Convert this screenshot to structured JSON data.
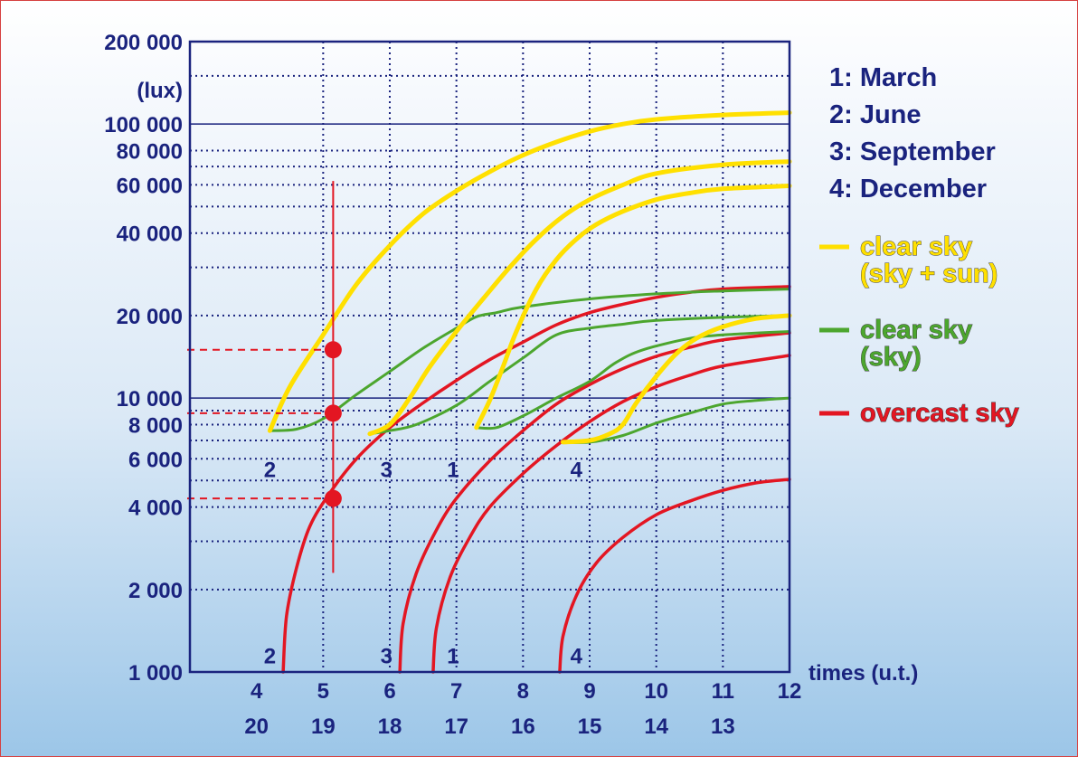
{
  "chart_data": {
    "type": "line",
    "y_scale": "log",
    "ylim": [
      1000,
      200000
    ],
    "xlim": [
      3,
      12
    ],
    "y_unit_label": "(lux)",
    "xlabel": "times (u.t.)",
    "y_tick_labels": [
      {
        "value": 200000,
        "label": "200 000"
      },
      {
        "value": 100000,
        "label": "100 000"
      },
      {
        "value": 80000,
        "label": "80 000"
      },
      {
        "value": 60000,
        "label": "60 000"
      },
      {
        "value": 40000,
        "label": "40 000"
      },
      {
        "value": 20000,
        "label": "20 000"
      },
      {
        "value": 10000,
        "label": "10 000"
      },
      {
        "value": 8000,
        "label": "8 000"
      },
      {
        "value": 6000,
        "label": "6 000"
      },
      {
        "value": 4000,
        "label": "4 000"
      },
      {
        "value": 2000,
        "label": "2 000"
      },
      {
        "value": 1000,
        "label": "1 000"
      }
    ],
    "x_ticks": [
      {
        "x": 4,
        "top": "4",
        "bottom": "20"
      },
      {
        "x": 5,
        "top": "5",
        "bottom": "19"
      },
      {
        "x": 6,
        "top": "6",
        "bottom": "18"
      },
      {
        "x": 7,
        "top": "7",
        "bottom": "17"
      },
      {
        "x": 8,
        "top": "8",
        "bottom": "16"
      },
      {
        "x": 9,
        "top": "9",
        "bottom": "15"
      },
      {
        "x": 10,
        "top": "10",
        "bottom": "14"
      },
      {
        "x": 11,
        "top": "11",
        "bottom": "13"
      },
      {
        "x": 12,
        "top": "12",
        "bottom": ""
      }
    ],
    "grid_dotted_y": [
      150000,
      80000,
      70000,
      60000,
      50000,
      40000,
      30000,
      20000,
      9000,
      8000,
      7000,
      6000,
      5000,
      4000,
      3000,
      2000
    ],
    "grid_solid_y": [
      100000,
      10000
    ],
    "grid_dotted_x": [
      5,
      6,
      7,
      8,
      9,
      10,
      11
    ],
    "legend": {
      "months": [
        "1: March",
        "2: June",
        "3: September",
        "4: December"
      ],
      "keys": [
        {
          "name": "clear sky\n(sky + sun)",
          "color": "#ffe000"
        },
        {
          "name": "clear sky\n(sky)",
          "color": "#4ca62e"
        },
        {
          "name": "overcast sky",
          "color": "#e31622"
        }
      ]
    },
    "colors": {
      "axis": "#1a237e",
      "text": "#1a237e",
      "clear_sun": "#ffe000",
      "clear_sky": "#4ca62e",
      "overcast": "#e31622"
    },
    "series": [
      {
        "group": "clear sky (sky + sun)",
        "month": "June",
        "points": [
          [
            4.2,
            7600
          ],
          [
            4.5,
            11000
          ],
          [
            5,
            17000
          ],
          [
            5.5,
            26000
          ],
          [
            6,
            36000
          ],
          [
            6.5,
            47000
          ],
          [
            7,
            57000
          ],
          [
            7.5,
            67000
          ],
          [
            8,
            77000
          ],
          [
            8.5,
            86000
          ],
          [
            9,
            94000
          ],
          [
            9.5,
            100000
          ],
          [
            10,
            104000
          ],
          [
            11,
            108000
          ],
          [
            12,
            110000
          ]
        ]
      },
      {
        "group": "clear sky (sky + sun)",
        "month": "September",
        "points": [
          [
            5.7,
            7400
          ],
          [
            6,
            8000
          ],
          [
            6.3,
            10000
          ],
          [
            6.6,
            13000
          ],
          [
            7,
            17500
          ],
          [
            7.4,
            23000
          ],
          [
            7.8,
            30000
          ],
          [
            8.2,
            38000
          ],
          [
            8.6,
            46000
          ],
          [
            9,
            53000
          ],
          [
            9.5,
            60000
          ],
          [
            10,
            66000
          ],
          [
            11,
            71000
          ],
          [
            12,
            73000
          ]
        ]
      },
      {
        "group": "clear sky (sky + sun)",
        "month": "March",
        "points": [
          [
            7.3,
            7800
          ],
          [
            7.5,
            9800
          ],
          [
            7.7,
            13000
          ],
          [
            7.9,
            17500
          ],
          [
            8.2,
            25000
          ],
          [
            8.5,
            32000
          ],
          [
            8.8,
            38000
          ],
          [
            9.1,
            43000
          ],
          [
            9.5,
            48000
          ],
          [
            10,
            53000
          ],
          [
            10.5,
            56000
          ],
          [
            11,
            58000
          ],
          [
            12,
            59500
          ]
        ]
      },
      {
        "group": "clear sky (sky + sun)",
        "month": "December",
        "points": [
          [
            8.6,
            6900
          ],
          [
            9,
            7000
          ],
          [
            9.3,
            7400
          ],
          [
            9.5,
            8000
          ],
          [
            9.7,
            9600
          ],
          [
            10,
            12000
          ],
          [
            10.3,
            14500
          ],
          [
            10.6,
            16500
          ],
          [
            11,
            18200
          ],
          [
            11.5,
            19500
          ],
          [
            12,
            20000
          ]
        ]
      },
      {
        "group": "clear sky (sky)",
        "month": "June",
        "points": [
          [
            4.2,
            7600
          ],
          [
            4.6,
            7700
          ],
          [
            5,
            8400
          ],
          [
            5.5,
            10300
          ],
          [
            6,
            12500
          ],
          [
            6.5,
            15200
          ],
          [
            7,
            18000
          ],
          [
            7.3,
            19800
          ],
          [
            7.6,
            20500
          ],
          [
            8,
            21500
          ],
          [
            9,
            23000
          ],
          [
            10,
            24000
          ],
          [
            11,
            24600
          ],
          [
            12,
            25000
          ]
        ]
      },
      {
        "group": "clear sky (sky)",
        "month": "September",
        "points": [
          [
            5.7,
            7400
          ],
          [
            6,
            7600
          ],
          [
            6.4,
            8000
          ],
          [
            7,
            9400
          ],
          [
            7.5,
            11500
          ],
          [
            8,
            14000
          ],
          [
            8.5,
            17000
          ],
          [
            9,
            18000
          ],
          [
            9.5,
            18600
          ],
          [
            10,
            19200
          ],
          [
            11,
            19700
          ],
          [
            12,
            20000
          ]
        ]
      },
      {
        "group": "clear sky (sky)",
        "month": "March",
        "points": [
          [
            7.3,
            7800
          ],
          [
            7.6,
            7800
          ],
          [
            8,
            8600
          ],
          [
            8.5,
            10000
          ],
          [
            9,
            11500
          ],
          [
            9.4,
            13500
          ],
          [
            9.8,
            15000
          ],
          [
            10.5,
            16500
          ],
          [
            11,
            17000
          ],
          [
            12,
            17500
          ]
        ]
      },
      {
        "group": "clear sky (sky)",
        "month": "December",
        "points": [
          [
            8.6,
            6900
          ],
          [
            9,
            6900
          ],
          [
            9.5,
            7300
          ],
          [
            10,
            8100
          ],
          [
            10.5,
            8800
          ],
          [
            11,
            9500
          ],
          [
            11.5,
            9800
          ],
          [
            12,
            10000
          ]
        ]
      },
      {
        "group": "overcast sky",
        "month": "June",
        "points": [
          [
            4.4,
            1000
          ],
          [
            4.45,
            1600
          ],
          [
            4.6,
            2400
          ],
          [
            4.8,
            3400
          ],
          [
            5.1,
            4500
          ],
          [
            5.5,
            6000
          ],
          [
            6,
            7800
          ],
          [
            6.5,
            9600
          ],
          [
            7,
            11600
          ],
          [
            7.5,
            13800
          ],
          [
            8,
            16000
          ],
          [
            8.5,
            18500
          ],
          [
            9,
            20500
          ],
          [
            9.5,
            22000
          ],
          [
            10,
            23300
          ],
          [
            10.5,
            24300
          ],
          [
            11,
            25000
          ],
          [
            12,
            25500
          ]
        ]
      },
      {
        "group": "overcast sky",
        "month": "September",
        "points": [
          [
            6.15,
            1000
          ],
          [
            6.2,
            1500
          ],
          [
            6.4,
            2300
          ],
          [
            6.7,
            3300
          ],
          [
            7,
            4300
          ],
          [
            7.5,
            5900
          ],
          [
            8,
            7600
          ],
          [
            8.5,
            9500
          ],
          [
            9,
            11200
          ],
          [
            9.5,
            12800
          ],
          [
            10,
            14200
          ],
          [
            10.5,
            15300
          ],
          [
            11,
            16300
          ],
          [
            12,
            17300
          ]
        ]
      },
      {
        "group": "overcast sky",
        "month": "March",
        "points": [
          [
            6.65,
            1000
          ],
          [
            6.7,
            1450
          ],
          [
            6.9,
            2200
          ],
          [
            7.2,
            3100
          ],
          [
            7.5,
            4000
          ],
          [
            8,
            5300
          ],
          [
            8.5,
            6700
          ],
          [
            9,
            8200
          ],
          [
            9.5,
            9700
          ],
          [
            10,
            11000
          ],
          [
            10.5,
            12100
          ],
          [
            11,
            13100
          ],
          [
            12,
            14300
          ]
        ]
      },
      {
        "group": "overcast sky",
        "month": "December",
        "points": [
          [
            8.55,
            1000
          ],
          [
            8.6,
            1350
          ],
          [
            8.8,
            1900
          ],
          [
            9.1,
            2500
          ],
          [
            9.5,
            3100
          ],
          [
            10,
            3750
          ],
          [
            10.5,
            4200
          ],
          [
            11,
            4600
          ],
          [
            11.5,
            4900
          ],
          [
            12,
            5050
          ]
        ]
      }
    ],
    "curve_labels": [
      {
        "text": "2",
        "x": 4.2,
        "y": 5500
      },
      {
        "text": "3",
        "x": 5.95,
        "y": 5500
      },
      {
        "text": "1",
        "x": 6.95,
        "y": 5500
      },
      {
        "text": "4",
        "x": 8.8,
        "y": 5500
      },
      {
        "text": "2",
        "x": 4.2,
        "y": 1150
      },
      {
        "text": "3",
        "x": 5.95,
        "y": 1150
      },
      {
        "text": "1",
        "x": 6.95,
        "y": 1150
      },
      {
        "text": "4",
        "x": 8.8,
        "y": 1150
      }
    ],
    "annotation": {
      "time": 5.15,
      "vline": [
        2300,
        62000
      ],
      "points": [
        15000,
        8800,
        4300
      ]
    }
  }
}
